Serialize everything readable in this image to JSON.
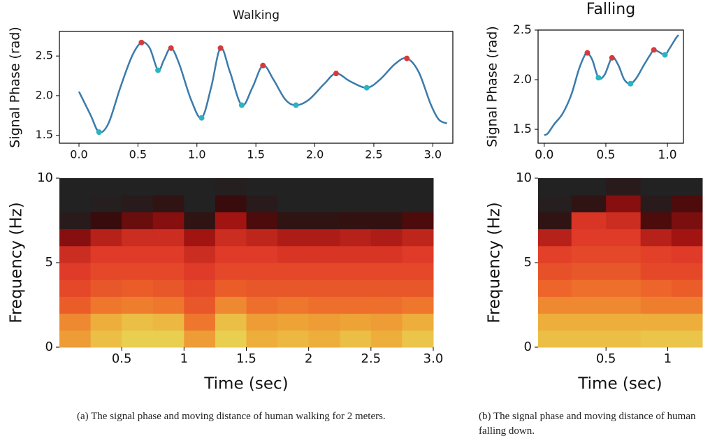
{
  "chart_data": [
    {
      "type": "line",
      "title": "Walking",
      "ylabel": "Signal Phase (rad)",
      "frame": true,
      "xlim": [
        -0.166,
        3.17
      ],
      "ylim": [
        1.4,
        2.81
      ],
      "xticks": [
        {
          "value": 0,
          "label": "0.0"
        },
        0.5,
        {
          "value": 1,
          "label": "1.0"
        },
        1.5,
        {
          "value": 2,
          "label": "2.0"
        },
        2.5,
        {
          "value": 3,
          "label": "3.0"
        }
      ],
      "yticks": [
        1.5,
        {
          "value": 2,
          "label": "2.0"
        },
        2.5
      ],
      "series": [
        {
          "style": "curve",
          "color": "#3b7bab",
          "x": [
            0.0,
            0.1,
            0.17,
            0.25,
            0.35,
            0.45,
            0.53,
            0.6,
            0.67,
            0.72,
            0.78,
            0.85,
            0.95,
            1.04,
            1.12,
            1.2,
            1.28,
            1.38,
            1.47,
            1.56,
            1.65,
            1.75,
            1.84,
            1.95,
            2.08,
            2.18,
            2.3,
            2.44,
            2.55,
            2.68,
            2.78,
            2.88,
            2.98,
            3.05,
            3.12
          ],
          "values": [
            2.05,
            1.75,
            1.54,
            1.65,
            2.1,
            2.5,
            2.67,
            2.6,
            2.32,
            2.45,
            2.6,
            2.4,
            1.95,
            1.72,
            2.1,
            2.6,
            2.3,
            1.88,
            2.1,
            2.38,
            2.2,
            1.95,
            1.88,
            1.95,
            2.15,
            2.28,
            2.18,
            2.1,
            2.2,
            2.4,
            2.47,
            2.3,
            1.9,
            1.7,
            1.65
          ]
        },
        {
          "style": "markers",
          "color": "#d63a3a",
          "x": [
            0.53,
            0.78,
            1.2,
            1.56,
            2.18,
            2.78
          ],
          "values": [
            2.67,
            2.6,
            2.6,
            2.38,
            2.28,
            2.47
          ]
        },
        {
          "style": "markers",
          "color": "#2bb3c0",
          "x": [
            0.17,
            0.67,
            1.04,
            1.38,
            1.84,
            2.44
          ],
          "values": [
            1.54,
            2.32,
            1.72,
            1.88,
            1.88,
            2.1
          ]
        }
      ]
    },
    {
      "type": "line",
      "title": "Falling",
      "ylabel": "Signal Phase (rad)",
      "frame": true,
      "xlim": [
        -0.05,
        1.13
      ],
      "ylim": [
        1.36,
        2.5
      ],
      "xticks": [
        {
          "value": 0,
          "label": "0.0"
        },
        0.5,
        {
          "value": 1,
          "label": "1.0"
        }
      ],
      "yticks": [
        1.5,
        {
          "value": 2,
          "label": "2.0"
        },
        2.5
      ],
      "series": [
        {
          "style": "curve",
          "color": "#3b7bab",
          "x": [
            0,
            0.03,
            0.08,
            0.15,
            0.22,
            0.28,
            0.33,
            0.35,
            0.39,
            0.44,
            0.49,
            0.55,
            0.6,
            0.65,
            0.7,
            0.75,
            0.81,
            0.86,
            0.89,
            0.93,
            0.98,
            1.01,
            1.04,
            1.07,
            1.09
          ],
          "values": [
            1.44,
            1.46,
            1.55,
            1.66,
            1.85,
            2.1,
            2.25,
            2.27,
            2.2,
            2.02,
            2.05,
            2.22,
            2.15,
            2.0,
            1.96,
            2.02,
            2.15,
            2.25,
            2.3,
            2.28,
            2.25,
            2.3,
            2.36,
            2.42,
            2.45
          ]
        },
        {
          "style": "markers",
          "color": "#d63a3a",
          "x": [
            0.35,
            0.55,
            0.89
          ],
          "values": [
            2.27,
            2.22,
            2.3
          ]
        },
        {
          "style": "markers",
          "color": "#2bb3c0",
          "x": [
            0.44,
            0.7,
            0.98
          ],
          "values": [
            2.02,
            1.96,
            2.25
          ]
        }
      ]
    },
    {
      "type": "heatmap",
      "ylabel": "Frequency (Hz)",
      "xlabel": "Time (sec)",
      "frame": false,
      "xlim": [
        0,
        3
      ],
      "ylim": [
        0,
        10
      ],
      "xticks": [
        0.5,
        1,
        1.5,
        2,
        2.5,
        {
          "value": 3,
          "label": "3.0"
        }
      ],
      "yticks": [
        0,
        5,
        10
      ],
      "colormap": [
        "#222222",
        "#3a0a0a",
        "#9a1010",
        "#e03a28",
        "#ee6a2a",
        "#eea838",
        "#e6e05a"
      ],
      "clim": [
        0,
        1
      ],
      "xbins": [
        0,
        0.25,
        0.5,
        0.75,
        1,
        1.25,
        1.5,
        1.75,
        2,
        2.25,
        2.5,
        2.75,
        3
      ],
      "ybins": [
        0,
        1,
        2,
        3,
        4,
        5,
        6,
        7,
        8,
        9,
        10
      ],
      "values": [
        [
          0.8,
          0.75,
          0.62,
          0.55,
          0.5,
          0.45,
          0.3,
          0.05,
          0,
          0
        ],
        [
          0.9,
          0.85,
          0.7,
          0.6,
          0.55,
          0.5,
          0.4,
          0.15,
          0.02,
          0
        ],
        [
          0.95,
          0.9,
          0.72,
          0.62,
          0.55,
          0.5,
          0.45,
          0.25,
          0.05,
          0
        ],
        [
          0.95,
          0.88,
          0.7,
          0.6,
          0.55,
          0.5,
          0.45,
          0.3,
          0.1,
          0
        ],
        [
          0.8,
          0.7,
          0.6,
          0.55,
          0.5,
          0.45,
          0.35,
          0.1,
          0,
          0
        ],
        [
          0.95,
          0.9,
          0.75,
          0.62,
          0.55,
          0.5,
          0.45,
          0.35,
          0.15,
          0.02
        ],
        [
          0.85,
          0.8,
          0.68,
          0.6,
          0.55,
          0.5,
          0.42,
          0.2,
          0.05,
          0
        ],
        [
          0.88,
          0.82,
          0.7,
          0.6,
          0.55,
          0.48,
          0.38,
          0.1,
          0,
          0
        ],
        [
          0.85,
          0.8,
          0.68,
          0.6,
          0.55,
          0.48,
          0.38,
          0.1,
          0,
          0
        ],
        [
          0.9,
          0.82,
          0.68,
          0.6,
          0.55,
          0.48,
          0.4,
          0.12,
          0,
          0
        ],
        [
          0.85,
          0.8,
          0.68,
          0.6,
          0.55,
          0.48,
          0.38,
          0.12,
          0,
          0
        ],
        [
          0.92,
          0.85,
          0.7,
          0.6,
          0.55,
          0.5,
          0.42,
          0.2,
          0,
          0
        ]
      ]
    },
    {
      "type": "heatmap",
      "ylabel": "Frequency (Hz)",
      "xlabel": "Time (sec)",
      "frame": false,
      "xlim": [
        -0.05,
        1.28
      ],
      "ylim": [
        0,
        10
      ],
      "xticks": [
        0.5,
        1
      ],
      "yticks": [
        0,
        5,
        10
      ],
      "colormap": [
        "#222222",
        "#3a0a0a",
        "#9a1010",
        "#e03a28",
        "#ee6a2a",
        "#eea838",
        "#e6e05a"
      ],
      "clim": [
        0,
        1
      ],
      "xbins": [
        -0.05,
        0.22,
        0.5,
        0.78,
        1.03,
        1.28
      ],
      "ybins": [
        0,
        1,
        2,
        3,
        4,
        5,
        6,
        7,
        8,
        9,
        10
      ],
      "values": [
        [
          0.9,
          0.85,
          0.75,
          0.65,
          0.58,
          0.52,
          0.4,
          0.1,
          0.02,
          0
        ],
        [
          0.9,
          0.85,
          0.75,
          0.68,
          0.6,
          0.55,
          0.5,
          0.48,
          0.1,
          0
        ],
        [
          0.9,
          0.85,
          0.75,
          0.68,
          0.6,
          0.55,
          0.5,
          0.45,
          0.3,
          0.05
        ],
        [
          0.92,
          0.85,
          0.72,
          0.65,
          0.55,
          0.52,
          0.4,
          0.2,
          0.05,
          0
        ],
        [
          0.92,
          0.85,
          0.72,
          0.62,
          0.55,
          0.5,
          0.35,
          0.28,
          0.2,
          0
        ]
      ]
    }
  ],
  "captions": [
    "(a) The signal phase and moving distance of human walking for 2 meters.",
    "(b) The signal phase and moving distance of human falling down."
  ]
}
